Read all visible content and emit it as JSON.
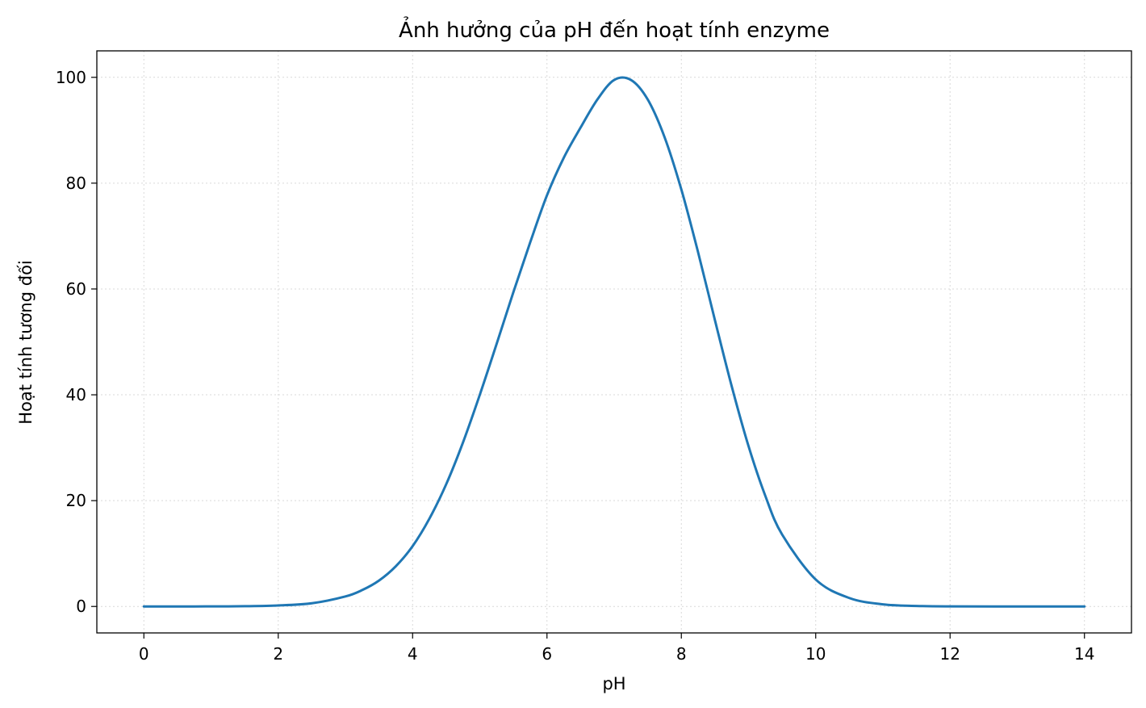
{
  "chart_data": {
    "type": "line",
    "title": "Ảnh hưởng của pH đến hoạt tính enzyme",
    "xlabel": "pH",
    "ylabel": "Hoạt tính tương đối",
    "xlim": [
      -0.7,
      14.7
    ],
    "ylim": [
      -5,
      105
    ],
    "xticks": [
      0,
      2,
      4,
      6,
      8,
      10,
      12,
      14
    ],
    "yticks": [
      0,
      20,
      40,
      60,
      80,
      100
    ],
    "grid": true,
    "legend": "none",
    "series": [
      {
        "color": "#1f77b4",
        "x": [
          0,
          0.5,
          1,
          1.5,
          2,
          2.5,
          3,
          3.25,
          3.5,
          3.75,
          4,
          4.25,
          4.5,
          4.75,
          5,
          5.25,
          5.5,
          5.75,
          6,
          6.25,
          6.5,
          6.75,
          7,
          7.25,
          7.5,
          7.75,
          8,
          8.25,
          8.5,
          8.75,
          9,
          9.25,
          9.5,
          10,
          10.5,
          11,
          11.5,
          12,
          13,
          14
        ],
        "y": [
          0.0,
          0.0,
          0.01,
          0.05,
          0.19,
          0.6,
          1.89,
          3.1,
          4.9,
          7.6,
          11.4,
          16.6,
          23.1,
          31.0,
          40.0,
          49.6,
          59.4,
          68.8,
          77.7,
          84.8,
          90.5,
          95.8,
          99.5,
          99.5,
          95.8,
          88.7,
          78.8,
          66.9,
          54.1,
          41.6,
          30.3,
          20.9,
          13.6,
          5.1,
          1.6,
          0.4,
          0.1,
          0.02,
          0.0,
          0.0
        ]
      }
    ]
  }
}
